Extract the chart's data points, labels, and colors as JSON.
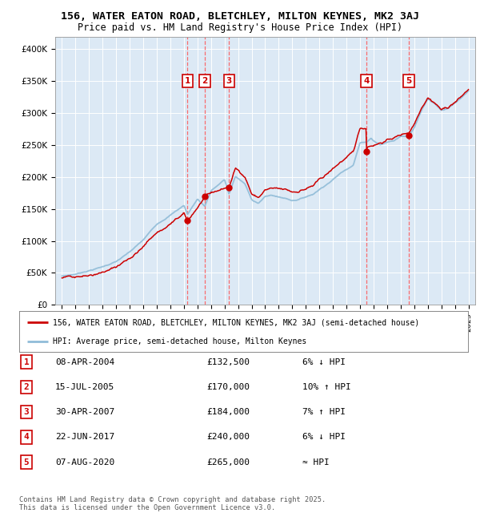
{
  "title_line1": "156, WATER EATON ROAD, BLETCHLEY, MILTON KEYNES, MK2 3AJ",
  "title_line2": "Price paid vs. HM Land Registry's House Price Index (HPI)",
  "plot_bg_color": "#dce9f5",
  "yticks": [
    0,
    50000,
    100000,
    150000,
    200000,
    250000,
    300000,
    350000,
    400000
  ],
  "ytick_labels": [
    "£0",
    "£50K",
    "£100K",
    "£150K",
    "£200K",
    "£250K",
    "£300K",
    "£350K",
    "£400K"
  ],
  "xmin": 1994.5,
  "xmax": 2025.5,
  "ymin": 0,
  "ymax": 420000,
  "legend_line1": "156, WATER EATON ROAD, BLETCHLEY, MILTON KEYNES, MK2 3AJ (semi-detached house)",
  "legend_line2": "HPI: Average price, semi-detached house, Milton Keynes",
  "footer": "Contains HM Land Registry data © Crown copyright and database right 2025.\nThis data is licensed under the Open Government Licence v3.0.",
  "sale_dates_decimal": [
    2004.27,
    2005.54,
    2007.33,
    2017.47,
    2020.6
  ],
  "sale_prices": [
    132500,
    170000,
    184000,
    240000,
    265000
  ],
  "sale_labels": [
    "1",
    "2",
    "3",
    "4",
    "5"
  ],
  "sale_table": [
    {
      "num": "1",
      "date": "08-APR-2004",
      "price": "£132,500",
      "rel": "6% ↓ HPI"
    },
    {
      "num": "2",
      "date": "15-JUL-2005",
      "price": "£170,000",
      "rel": "10% ↑ HPI"
    },
    {
      "num": "3",
      "date": "30-APR-2007",
      "price": "£184,000",
      "rel": "7% ↑ HPI"
    },
    {
      "num": "4",
      "date": "22-JUN-2017",
      "price": "£240,000",
      "rel": "6% ↓ HPI"
    },
    {
      "num": "5",
      "date": "07-AUG-2020",
      "price": "£265,000",
      "rel": "≈ HPI"
    }
  ],
  "hpi_color": "#90bcd8",
  "sale_color": "#cc0000",
  "vline_color": "#ff5555",
  "box_color": "#cc0000",
  "dot_color": "#cc0000"
}
